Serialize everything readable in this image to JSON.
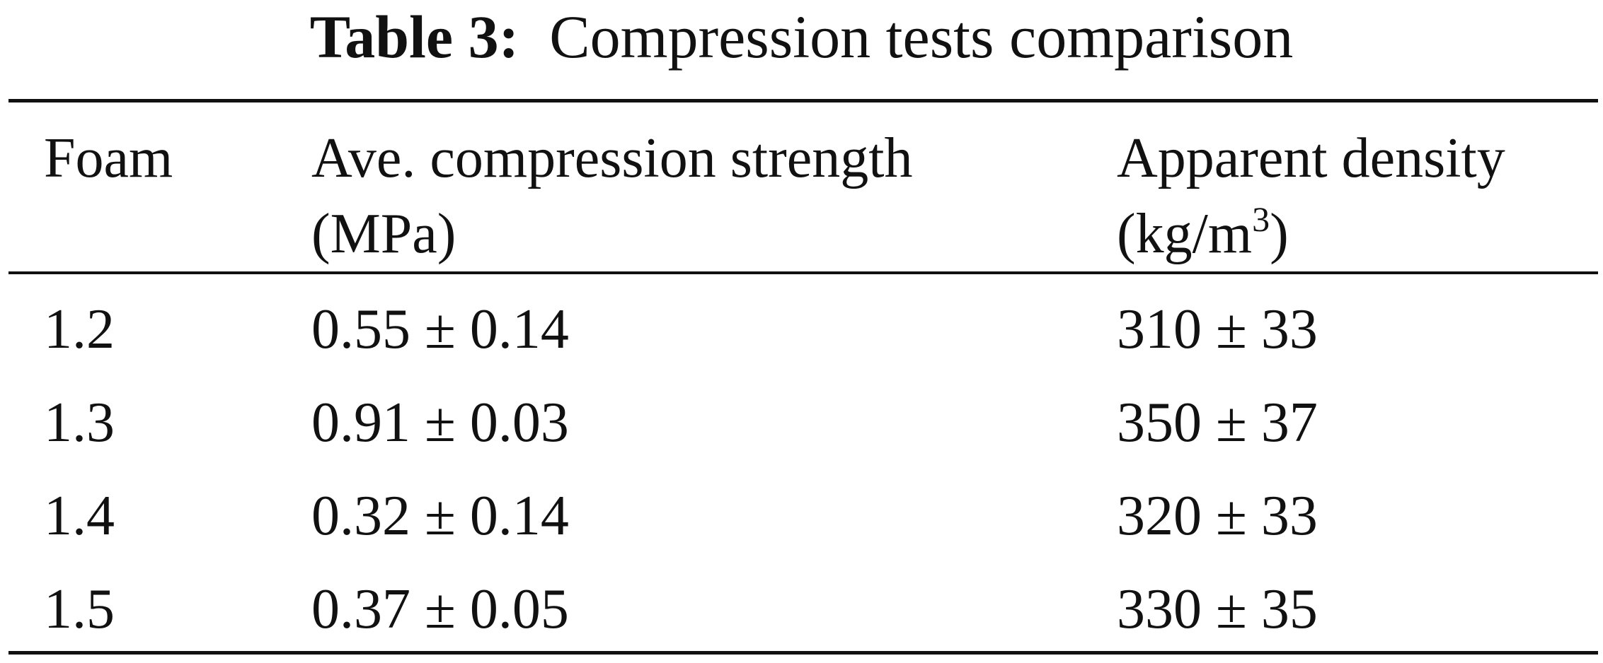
{
  "caption": {
    "label": "Table 3:",
    "text": "Compression tests comparison"
  },
  "table": {
    "headers": {
      "foam": "Foam",
      "strength_line1": "Ave. compression strength",
      "strength_line2": "(MPa)",
      "density_line1": "Apparent density",
      "density_unit_pre": "(kg/m",
      "density_unit_sup": "3",
      "density_unit_post": ")"
    },
    "rows": [
      {
        "foam": "1.2",
        "strength": "0.55 ± 0.14",
        "density": "310 ± 33"
      },
      {
        "foam": "1.3",
        "strength": "0.91 ± 0.03",
        "density": "350 ± 37"
      },
      {
        "foam": "1.4",
        "strength": "0.32 ± 0.14",
        "density": "320 ± 33"
      },
      {
        "foam": "1.5",
        "strength": "0.37 ± 0.05",
        "density": "330 ± 35"
      }
    ]
  }
}
